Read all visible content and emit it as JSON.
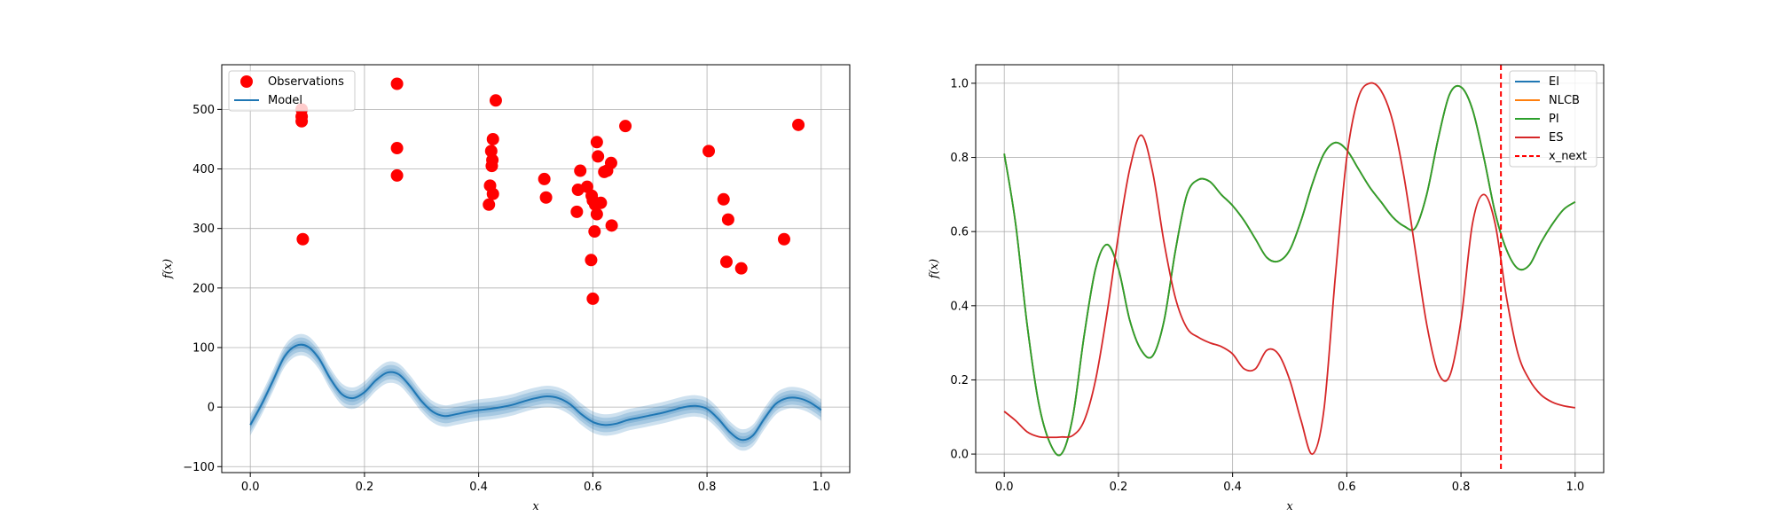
{
  "chart_data": [
    {
      "type": "scatter",
      "xlabel": "x",
      "ylabel": "f(x)",
      "xlim": [
        -0.05,
        1.05
      ],
      "ylim": [
        -110,
        575
      ],
      "xticks": [
        0.0,
        0.2,
        0.4,
        0.6,
        0.8,
        1.0
      ],
      "xtick_labels": [
        "0.0",
        "0.2",
        "0.4",
        "0.6",
        "0.8",
        "1.0"
      ],
      "yticks": [
        -100,
        0,
        100,
        200,
        300,
        400,
        500
      ],
      "ytick_labels": [
        "−100",
        "0",
        "100",
        "200",
        "300",
        "400",
        "500"
      ],
      "grid": true,
      "legend": {
        "placement": "top-left",
        "entries": [
          "Observations",
          "Model"
        ]
      },
      "series": [
        {
          "name": "Observations",
          "kind": "points",
          "color": "#ff0000",
          "points": [
            [
              0.09,
              500
            ],
            [
              0.09,
              488
            ],
            [
              0.09,
              480
            ],
            [
              0.092,
              282
            ],
            [
              0.257,
              543
            ],
            [
              0.257,
              435
            ],
            [
              0.257,
              389
            ],
            [
              0.43,
              515
            ],
            [
              0.425,
              450
            ],
            [
              0.422,
              430
            ],
            [
              0.424,
              415
            ],
            [
              0.423,
              405
            ],
            [
              0.42,
              372
            ],
            [
              0.425,
              358
            ],
            [
              0.418,
              340
            ],
            [
              0.515,
              383
            ],
            [
              0.518,
              352
            ],
            [
              0.578,
              397
            ],
            [
              0.574,
              365
            ],
            [
              0.572,
              328
            ],
            [
              0.59,
              370
            ],
            [
              0.598,
              355
            ],
            [
              0.6,
              347
            ],
            [
              0.604,
              340
            ],
            [
              0.614,
              343
            ],
            [
              0.607,
              324
            ],
            [
              0.603,
              295
            ],
            [
              0.597,
              247
            ],
            [
              0.6,
              182
            ],
            [
              0.607,
              445
            ],
            [
              0.609,
              421
            ],
            [
              0.632,
              410
            ],
            [
              0.625,
              397
            ],
            [
              0.62,
              395
            ],
            [
              0.633,
              305
            ],
            [
              0.657,
              472
            ],
            [
              0.803,
              430
            ],
            [
              0.829,
              349
            ],
            [
              0.837,
              315
            ],
            [
              0.834,
              244
            ],
            [
              0.86,
              233
            ],
            [
              0.935,
              282
            ],
            [
              0.96,
              474
            ]
          ]
        },
        {
          "name": "Model",
          "kind": "line",
          "color": "#1f77b4",
          "band_widths": [
            6,
            12,
            18
          ],
          "x": [
            0.0,
            0.02,
            0.04,
            0.06,
            0.08,
            0.1,
            0.12,
            0.14,
            0.16,
            0.18,
            0.2,
            0.22,
            0.24,
            0.26,
            0.28,
            0.3,
            0.32,
            0.34,
            0.36,
            0.38,
            0.4,
            0.42,
            0.44,
            0.46,
            0.48,
            0.5,
            0.52,
            0.54,
            0.56,
            0.58,
            0.6,
            0.62,
            0.64,
            0.66,
            0.68,
            0.7,
            0.72,
            0.74,
            0.76,
            0.78,
            0.8,
            0.82,
            0.84,
            0.86,
            0.88,
            0.9,
            0.92,
            0.94,
            0.96,
            0.98,
            1.0
          ],
          "y": [
            -30,
            5,
            45,
            85,
            103,
            102,
            82,
            48,
            22,
            15,
            25,
            45,
            58,
            55,
            35,
            10,
            -8,
            -15,
            -12,
            -8,
            -5,
            -3,
            0,
            4,
            10,
            15,
            18,
            15,
            5,
            -12,
            -25,
            -30,
            -28,
            -22,
            -18,
            -14,
            -10,
            -5,
            0,
            2,
            -3,
            -20,
            -42,
            -55,
            -48,
            -20,
            5,
            15,
            15,
            8,
            -5
          ]
        }
      ]
    },
    {
      "type": "line",
      "xlabel": "x",
      "ylabel": "f(x)",
      "xlim": [
        -0.05,
        1.05
      ],
      "ylim": [
        -0.05,
        1.05
      ],
      "xticks": [
        0.0,
        0.2,
        0.4,
        0.6,
        0.8,
        1.0
      ],
      "xtick_labels": [
        "0.0",
        "0.2",
        "0.4",
        "0.6",
        "0.8",
        "1.0"
      ],
      "yticks": [
        0.0,
        0.2,
        0.4,
        0.6,
        0.8,
        1.0
      ],
      "ytick_labels": [
        "0.0",
        "0.2",
        "0.4",
        "0.6",
        "0.8",
        "1.0"
      ],
      "grid": true,
      "legend": {
        "placement": "top-right",
        "entries": [
          "EI",
          "NLCB",
          "PI",
          "ES",
          "x_next"
        ]
      },
      "x": [
        0.0,
        0.02,
        0.04,
        0.06,
        0.08,
        0.1,
        0.12,
        0.14,
        0.16,
        0.18,
        0.2,
        0.22,
        0.24,
        0.26,
        0.28,
        0.3,
        0.32,
        0.34,
        0.36,
        0.38,
        0.4,
        0.42,
        0.44,
        0.46,
        0.48,
        0.5,
        0.52,
        0.54,
        0.56,
        0.58,
        0.6,
        0.62,
        0.64,
        0.66,
        0.68,
        0.7,
        0.72,
        0.74,
        0.76,
        0.78,
        0.8,
        0.82,
        0.84,
        0.86,
        0.88,
        0.9,
        0.92,
        0.94,
        0.96,
        0.98,
        1.0
      ],
      "series": [
        {
          "name": "EI",
          "color": "#1f77b4",
          "values": [
            0.81,
            0.62,
            0.35,
            0.14,
            0.03,
            0.0,
            0.1,
            0.32,
            0.5,
            0.565,
            0.5,
            0.36,
            0.28,
            0.265,
            0.36,
            0.55,
            0.7,
            0.74,
            0.735,
            0.7,
            0.67,
            0.63,
            0.58,
            0.53,
            0.52,
            0.55,
            0.63,
            0.73,
            0.81,
            0.84,
            0.82,
            0.77,
            0.72,
            0.68,
            0.64,
            0.615,
            0.61,
            0.7,
            0.85,
            0.97,
            0.99,
            0.93,
            0.8,
            0.65,
            0.55,
            0.5,
            0.51,
            0.57,
            0.62,
            0.66,
            0.68
          ]
        },
        {
          "name": "NLCB",
          "color": "#ff7f0e",
          "values": [
            0.81,
            0.62,
            0.35,
            0.14,
            0.03,
            0.0,
            0.1,
            0.32,
            0.5,
            0.565,
            0.5,
            0.36,
            0.28,
            0.265,
            0.36,
            0.55,
            0.7,
            0.74,
            0.735,
            0.7,
            0.67,
            0.63,
            0.58,
            0.53,
            0.52,
            0.55,
            0.63,
            0.73,
            0.81,
            0.84,
            0.82,
            0.77,
            0.72,
            0.68,
            0.64,
            0.615,
            0.61,
            0.7,
            0.85,
            0.97,
            0.99,
            0.93,
            0.8,
            0.65,
            0.55,
            0.5,
            0.51,
            0.57,
            0.62,
            0.66,
            0.68
          ]
        },
        {
          "name": "PI",
          "color": "#2ca02c",
          "values": [
            0.81,
            0.62,
            0.35,
            0.14,
            0.03,
            0.0,
            0.1,
            0.32,
            0.5,
            0.565,
            0.5,
            0.36,
            0.28,
            0.265,
            0.36,
            0.55,
            0.7,
            0.74,
            0.735,
            0.7,
            0.67,
            0.63,
            0.58,
            0.53,
            0.52,
            0.55,
            0.63,
            0.73,
            0.81,
            0.84,
            0.82,
            0.77,
            0.72,
            0.68,
            0.64,
            0.615,
            0.61,
            0.7,
            0.85,
            0.97,
            0.99,
            0.93,
            0.8,
            0.65,
            0.55,
            0.5,
            0.51,
            0.57,
            0.62,
            0.66,
            0.68
          ]
        },
        {
          "name": "ES",
          "color": "#d62728",
          "values": [
            0.115,
            0.09,
            0.06,
            0.047,
            0.045,
            0.046,
            0.05,
            0.09,
            0.2,
            0.38,
            0.59,
            0.77,
            0.86,
            0.76,
            0.57,
            0.42,
            0.34,
            0.315,
            0.3,
            0.29,
            0.27,
            0.23,
            0.23,
            0.28,
            0.27,
            0.2,
            0.09,
            0.0,
            0.12,
            0.48,
            0.8,
            0.96,
            1.0,
            0.98,
            0.9,
            0.75,
            0.55,
            0.35,
            0.22,
            0.21,
            0.36,
            0.62,
            0.7,
            0.62,
            0.42,
            0.27,
            0.2,
            0.16,
            0.14,
            0.13,
            0.125
          ]
        }
      ],
      "x_next": {
        "name": "x_next",
        "value": 0.87,
        "color": "#ff0000"
      }
    }
  ]
}
